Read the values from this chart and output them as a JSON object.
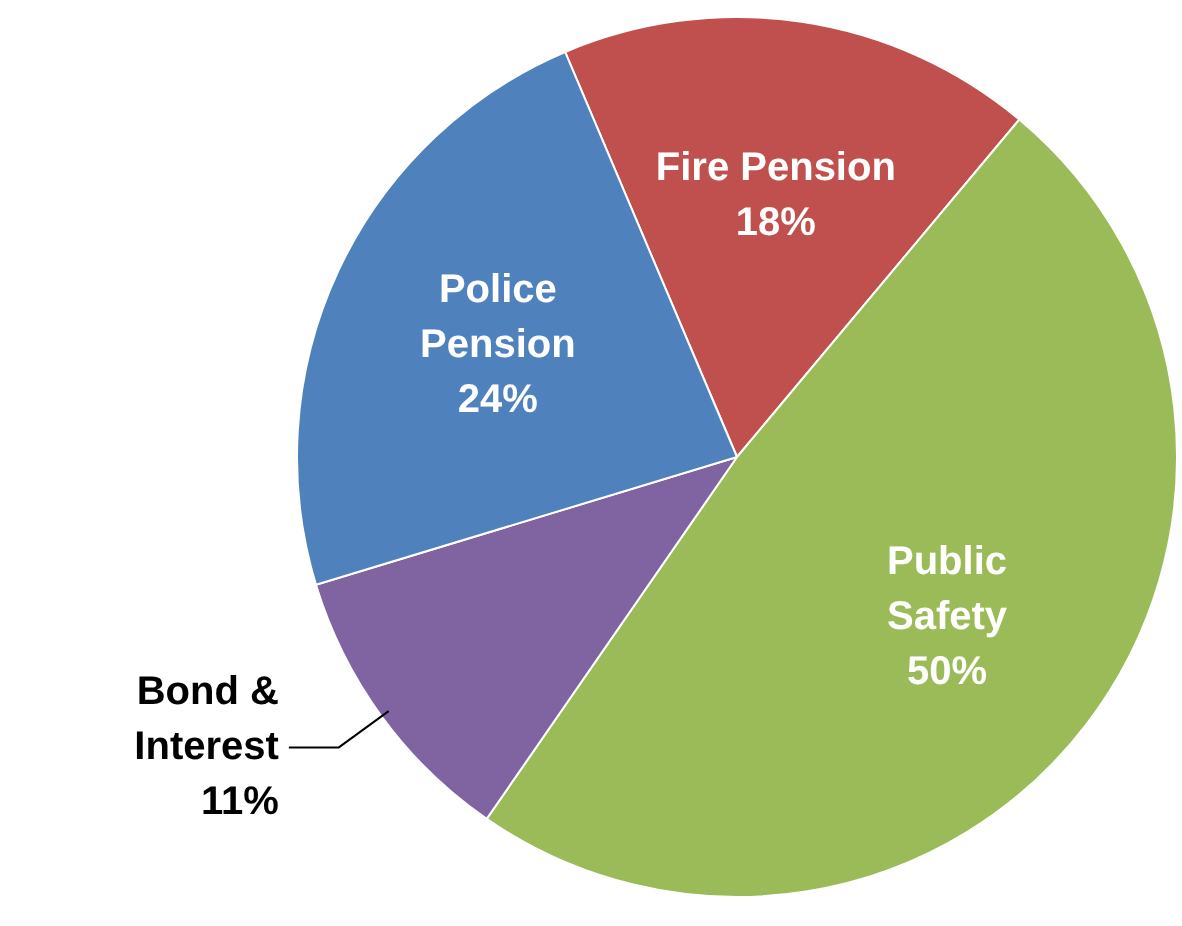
{
  "chart_data": {
    "type": "pie",
    "categories": [
      "Fire Pension",
      "Public Safety",
      "Bond & Interest",
      "Police Pension"
    ],
    "values": [
      18,
      50,
      11,
      24
    ],
    "value_labels": [
      "18%",
      "50%",
      "11%",
      "24%"
    ],
    "colors": [
      "#c0504d",
      "#9bbb59",
      "#8064a2",
      "#4f81bd"
    ],
    "legend": false
  }
}
